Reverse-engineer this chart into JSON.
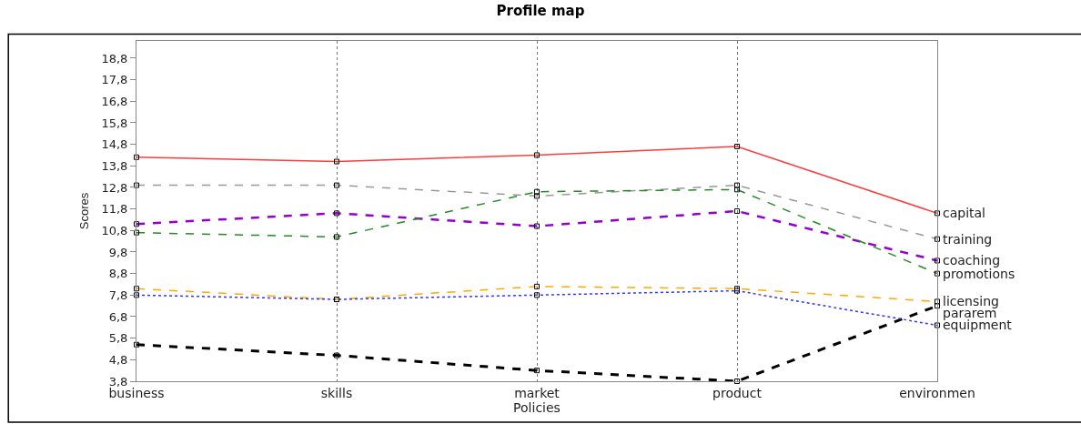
{
  "chart_data": {
    "type": "line",
    "title": "Profile map",
    "xlabel": "Policies",
    "ylabel": "Scores",
    "categories": [
      "business",
      "skills",
      "market",
      "product",
      "environmen"
    ],
    "ylim": [
      3.8,
      19.6
    ],
    "yticks": [
      {
        "value": 3.8,
        "label": "3,8"
      },
      {
        "value": 4.8,
        "label": "4,8"
      },
      {
        "value": 5.8,
        "label": "5,8"
      },
      {
        "value": 6.8,
        "label": "6,8"
      },
      {
        "value": 7.8,
        "label": "7,8"
      },
      {
        "value": 8.8,
        "label": "8,8"
      },
      {
        "value": 9.8,
        "label": "9,8"
      },
      {
        "value": 10.8,
        "label": "10,8"
      },
      {
        "value": 11.8,
        "label": "11,8"
      },
      {
        "value": 12.8,
        "label": "12,8"
      },
      {
        "value": 13.8,
        "label": "13,8"
      },
      {
        "value": 14.8,
        "label": "14,8"
      },
      {
        "value": 15.8,
        "label": "15,8"
      },
      {
        "value": 16.8,
        "label": "16,8"
      },
      {
        "value": 17.8,
        "label": "17,8"
      },
      {
        "value": 18.8,
        "label": "18,8"
      }
    ],
    "grid": "x",
    "legend": false,
    "marker": "square",
    "series": [
      {
        "name": "capital",
        "color": "#ff3b3b",
        "line_style": "solid",
        "values": [
          14.2,
          14.0,
          14.3,
          14.7,
          11.6
        ]
      },
      {
        "name": "training",
        "color": "#999999",
        "line_style": "dashed",
        "values": [
          12.9,
          12.9,
          12.4,
          12.9,
          10.4
        ]
      },
      {
        "name": "coaching",
        "color": "#9400d3",
        "line_style": "dashed",
        "values": [
          11.1,
          11.6,
          11.0,
          11.7,
          9.4
        ]
      },
      {
        "name": "promotions",
        "color": "#228b22",
        "line_style": "dashed",
        "values": [
          10.7,
          10.5,
          12.6,
          12.7,
          8.8
        ]
      },
      {
        "name": "licensing",
        "color": "#ffaa00",
        "line_style": "dashed",
        "values": [
          8.1,
          7.6,
          8.2,
          8.1,
          7.5
        ]
      },
      {
        "name": "pararem",
        "color": "#000000",
        "line_style": "dashed",
        "values": [
          5.5,
          5.0,
          4.3,
          3.8,
          7.3
        ]
      },
      {
        "name": "equipment",
        "color": "#3333ff",
        "line_style": "dotted",
        "values": [
          7.8,
          7.6,
          7.8,
          8.0,
          6.4
        ]
      }
    ]
  }
}
